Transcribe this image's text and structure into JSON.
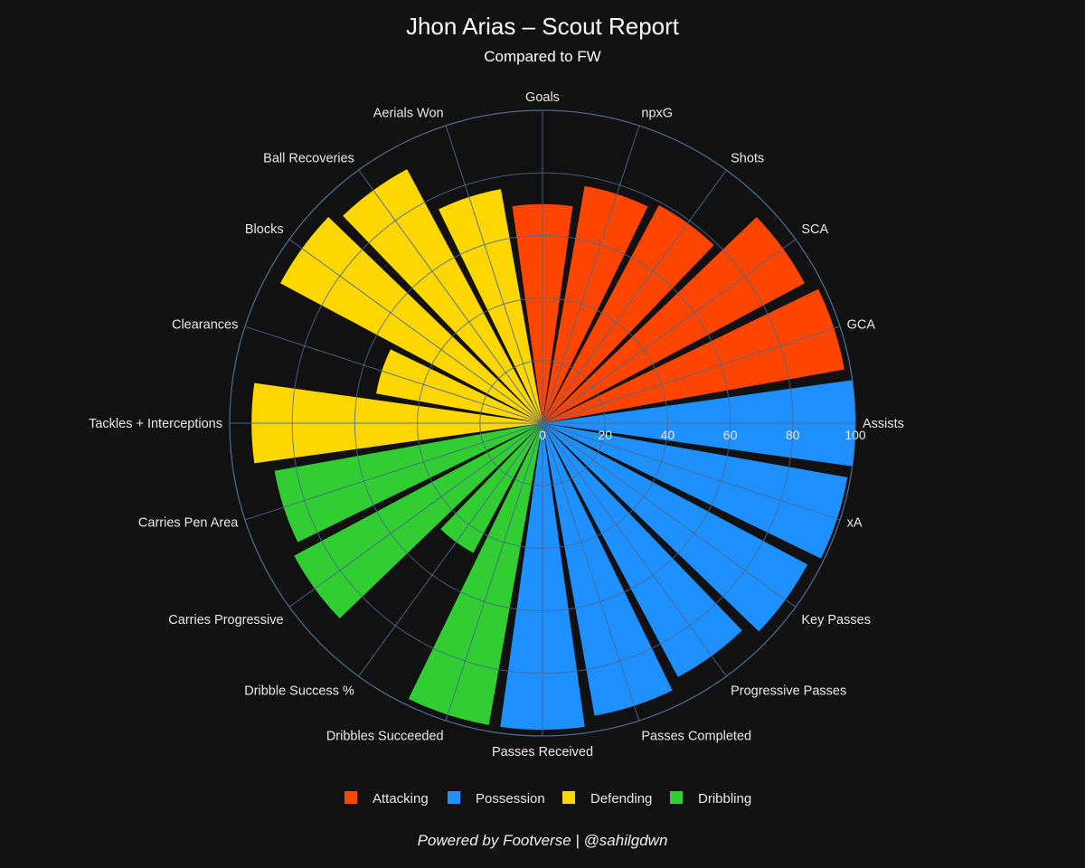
{
  "chart_data": {
    "type": "polar-bar",
    "title": "Jhon Arias – Scout Report",
    "subtitle": "Compared to FW",
    "radial_range": [
      0,
      100
    ],
    "radial_ticks": [
      "0",
      "20",
      "40",
      "60",
      "80",
      "100"
    ],
    "grid": true,
    "legend_position": "bottom",
    "groups": [
      {
        "name": "Attacking",
        "color": "#FF4500"
      },
      {
        "name": "Possession",
        "color": "#1E90FF"
      },
      {
        "name": "Defending",
        "color": "#FFD700"
      },
      {
        "name": "Dribbling",
        "color": "#32CD32"
      }
    ],
    "categories": [
      {
        "label": "Goals",
        "value": 70,
        "group": "Attacking"
      },
      {
        "label": "npxG",
        "value": 77,
        "group": "Attacking"
      },
      {
        "label": "Shots",
        "value": 79,
        "group": "Attacking"
      },
      {
        "label": "SCA",
        "value": 95,
        "group": "Attacking"
      },
      {
        "label": "GCA",
        "value": 98,
        "group": "Attacking"
      },
      {
        "label": "Assists",
        "value": 100,
        "group": "Possession"
      },
      {
        "label": "xA",
        "value": 99,
        "group": "Possession"
      },
      {
        "label": "Key Passes",
        "value": 96,
        "group": "Possession"
      },
      {
        "label": "Progressive Passes",
        "value": 92,
        "group": "Possession"
      },
      {
        "label": "Passes Completed",
        "value": 95,
        "group": "Possession"
      },
      {
        "label": "Passes Received",
        "value": 98,
        "group": "Possession"
      },
      {
        "label": "Dribbles Succeeded",
        "value": 98,
        "group": "Dribbling"
      },
      {
        "label": "Dribble Success %",
        "value": 47,
        "group": "Dribbling"
      },
      {
        "label": "Carries Progressive",
        "value": 90,
        "group": "Dribbling"
      },
      {
        "label": "Carries Pen Area",
        "value": 87,
        "group": "Dribbling"
      },
      {
        "label": "Tackles + Interceptions",
        "value": 93,
        "group": "Defending"
      },
      {
        "label": "Clearances",
        "value": 54,
        "group": "Defending"
      },
      {
        "label": "Blocks",
        "value": 95,
        "group": "Defending"
      },
      {
        "label": "Ball Recoveries",
        "value": 92,
        "group": "Defending"
      },
      {
        "label": "Aerials Won",
        "value": 76,
        "group": "Defending"
      }
    ]
  },
  "footer": {
    "text": "Powered by Footverse | @sahilgdwn"
  }
}
